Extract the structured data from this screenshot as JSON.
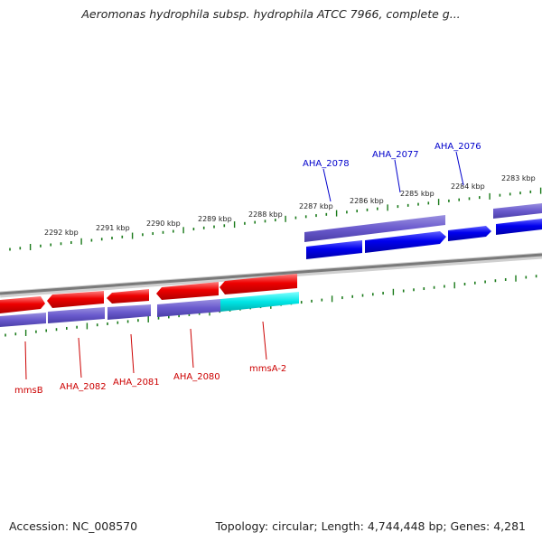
{
  "title": "Aeromonas hydrophila subsp. hydrophila ATCC 7966, complete g...",
  "footer": {
    "accession": "Accession: NC_008570",
    "summary": "Topology: circular; Length: 4,744,448 bp; Genes: 4,281"
  },
  "ticks": [
    "2292 kbp",
    "2291 kbp",
    "2290 kbp",
    "2289 kbp",
    "2288 kbp",
    "2287 kbp",
    "2286 kbp",
    "2285 kbp",
    "2284 kbp",
    "2283 kbp"
  ],
  "genes_forward": [
    {
      "name": "AHA_2078",
      "strand": "+"
    },
    {
      "name": "AHA_2077",
      "strand": "+"
    },
    {
      "name": "AHA_2076",
      "strand": "+"
    }
  ],
  "genes_reverse": [
    {
      "name": "mmsB",
      "strand": "-"
    },
    {
      "name": "AHA_2082",
      "strand": "-"
    },
    {
      "name": "AHA_2081",
      "strand": "-"
    },
    {
      "name": "AHA_2080",
      "strand": "-"
    },
    {
      "name": "mmsA-2",
      "strand": "-"
    }
  ],
  "colors": {
    "forward_gene": "#0000ee",
    "reverse_gene": "#ee0000",
    "cds_band": "#6a5acd",
    "highlight_band": "#00e5e5",
    "tick": "#1a7a1a",
    "backbone": "#808080"
  }
}
